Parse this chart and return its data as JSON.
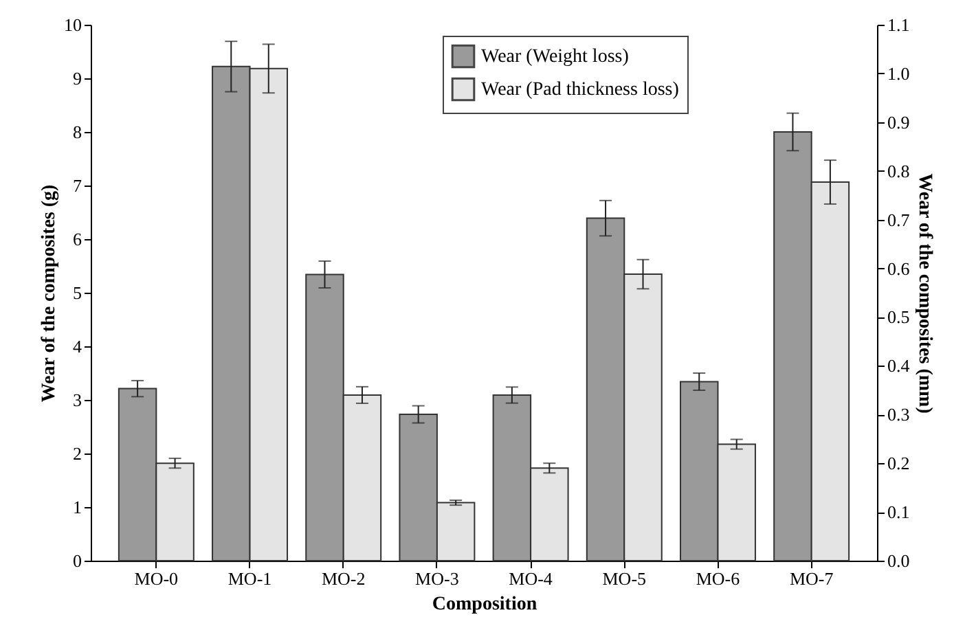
{
  "chart_data": {
    "type": "bar",
    "xlabel": "Composition",
    "ylabel": "Wear of the composites (g)",
    "y2label": "Wear of the composites (mm)",
    "categories": [
      "MO-0",
      "MO-1",
      "MO-2",
      "MO-3",
      "MO-4",
      "MO-5",
      "MO-6",
      "MO-7"
    ],
    "series": [
      {
        "name": "Wear (Weight loss)",
        "color": "#9a9a9a",
        "values": [
          3.21,
          9.22,
          5.34,
          2.73,
          3.09,
          6.39,
          3.34,
          8.0
        ],
        "errors": [
          0.15,
          0.47,
          0.25,
          0.16,
          0.15,
          0.33,
          0.16,
          0.35
        ]
      },
      {
        "name": "Wear (Pad thickness loss)",
        "color": "#e4e4e4",
        "axis": "y2",
        "values": [
          0.2,
          1.01,
          0.34,
          0.119,
          0.19,
          0.588,
          0.239,
          0.777
        ],
        "errors": [
          0.01,
          0.05,
          0.017,
          0.005,
          0.01,
          0.03,
          0.01,
          0.045
        ]
      }
    ],
    "ylim": [
      0,
      10
    ],
    "yticks": [
      0,
      1,
      2,
      3,
      4,
      5,
      6,
      7,
      8,
      9,
      10
    ],
    "y2lim": [
      0,
      1.1
    ],
    "y2ticks": [
      {
        "value": 0,
        "label": "0.0"
      },
      0.1,
      0.2,
      0.3,
      0.4,
      0.5,
      0.6,
      0.7,
      0.8,
      0.9,
      {
        "value": 1,
        "label": "1.0"
      },
      1.1
    ],
    "grid": false,
    "legend": "top"
  }
}
